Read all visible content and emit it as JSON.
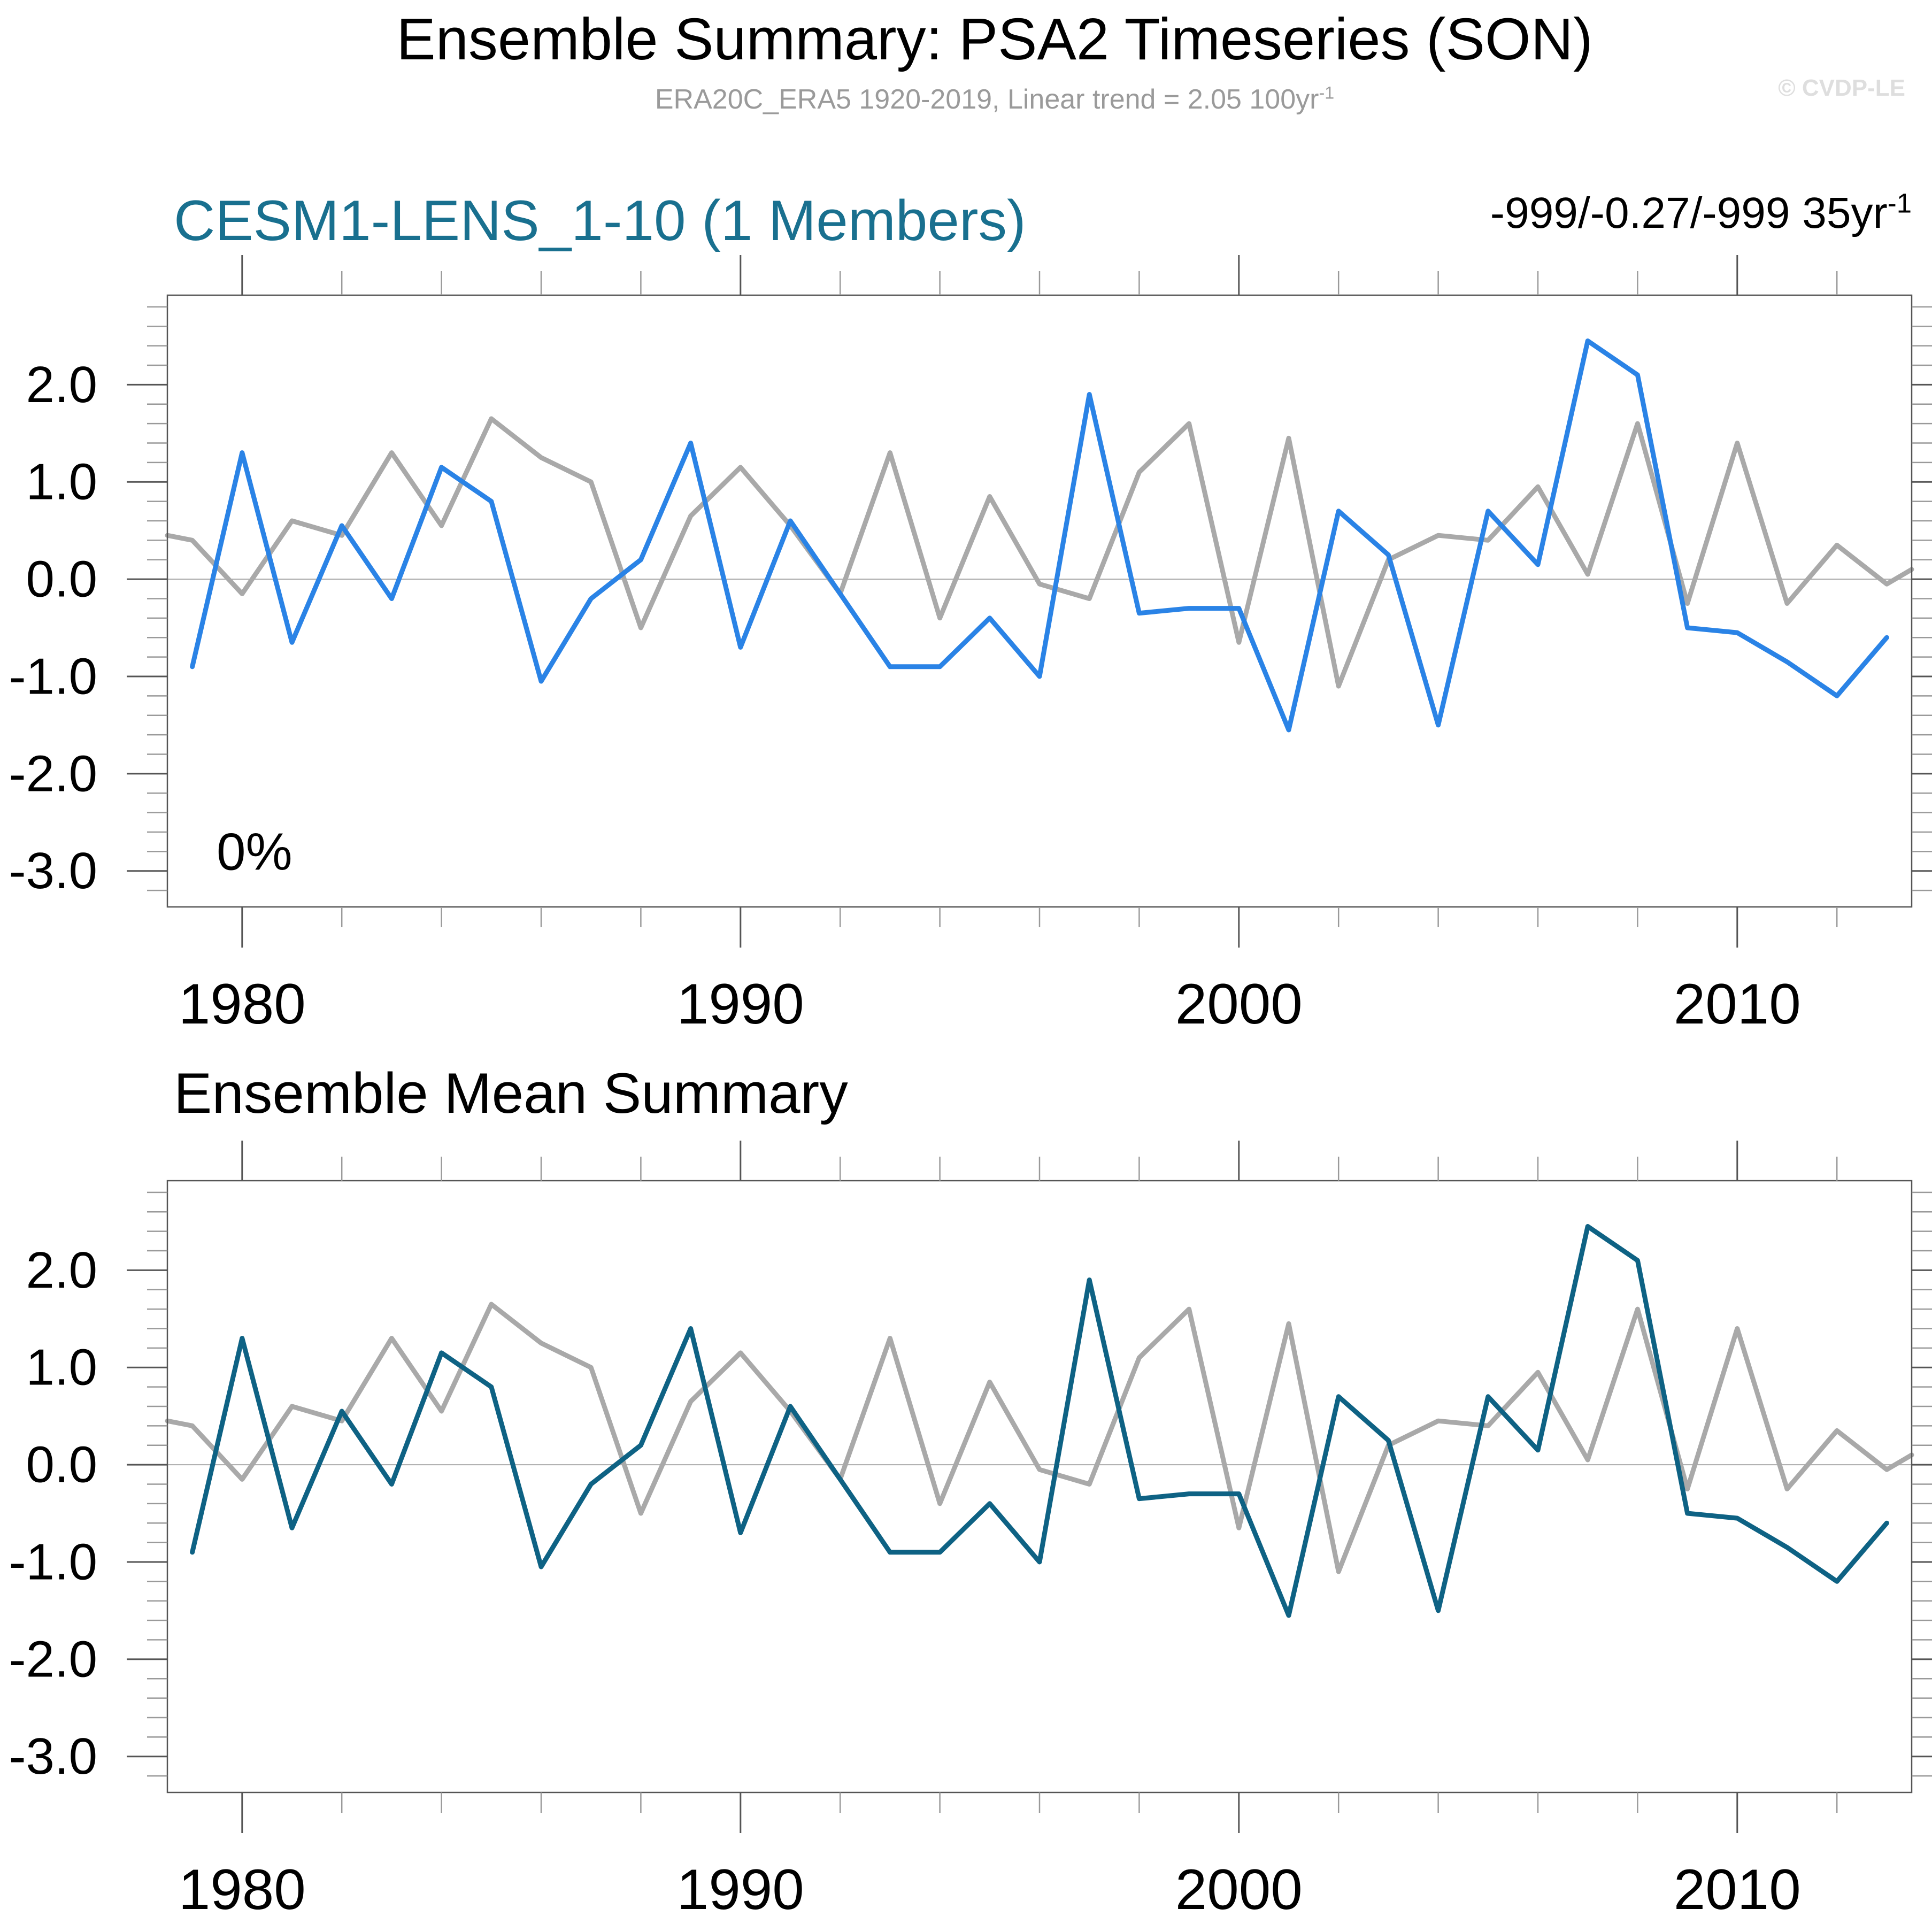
{
  "page": {
    "background": "#ffffff"
  },
  "header": {
    "title": "Ensemble Summary: PSA2 Timeseries (SON)",
    "subtitle": "ERA20C_ERA5 1920-2019, Linear trend = 2.05 100yr",
    "subtitle_superscript": "-1",
    "watermark": "© CVDP-LE"
  },
  "panels": [
    {
      "title": "CESM1-LENS_1-10 (1 Members)",
      "title_color": "#19708f",
      "annotation": "-999/-0.27/-999 35yr",
      "annotation_superscript": "-1",
      "inner_label": "0%"
    },
    {
      "title": "Ensemble Mean Summary",
      "title_color": "#000000"
    }
  ],
  "colors": {
    "obs_line": "#a9a9a9",
    "member_line": "#2a83e6",
    "ensemble_mean_line": "#0e6284",
    "frame": "#555555",
    "major_tick": "#555555",
    "minor_tick": "#9a9a9a",
    "zero_line": "#aaaaaa",
    "axis_label": "#000000"
  },
  "chart_data": [
    {
      "type": "line",
      "title": "CESM1-LENS_1-10 (1 Members)",
      "xlabel": "",
      "ylabel": "",
      "xlim": [
        1978.5,
        2013.5
      ],
      "ylim": [
        -3.37,
        2.92
      ],
      "x_major_ticks": [
        1980,
        1990,
        2000,
        2010
      ],
      "x_tick_labels": [
        "1980",
        "1990",
        "2000",
        "2010"
      ],
      "x_minor_tick_step": 2,
      "y_major_ticks": [
        2,
        1,
        0,
        -1,
        -2,
        -3
      ],
      "y_tick_labels": [
        "2.0",
        "1.0",
        "0.0",
        "-1.0",
        "-2.0",
        "-3.0"
      ],
      "y_minor_tick_step": 0.2,
      "grid": "zero-line-only",
      "legend": "none",
      "annotation_bottom_left": "0%",
      "series": [
        {
          "name": "ERA20C_ERA5",
          "color": "#a9a9a9",
          "x": [
            1978.5,
            1979,
            1980,
            1981,
            1982,
            1983,
            1984,
            1985,
            1986,
            1987,
            1988,
            1989,
            1990,
            1991,
            1992,
            1993,
            1994,
            1995,
            1996,
            1997,
            1998,
            1999,
            2000,
            2001,
            2002,
            2003,
            2004,
            2005,
            2006,
            2007,
            2008,
            2009,
            2010,
            2011,
            2012,
            2013,
            2013.5
          ],
          "values": [
            0.45,
            0.4,
            -0.15,
            0.6,
            0.45,
            1.3,
            0.55,
            1.65,
            1.25,
            1.0,
            -0.5,
            0.65,
            1.15,
            0.55,
            -0.15,
            1.3,
            -0.4,
            0.85,
            -0.05,
            -0.2,
            1.1,
            1.6,
            -0.65,
            1.45,
            -1.1,
            0.2,
            0.45,
            0.4,
            0.95,
            0.05,
            1.6,
            -0.25,
            1.4,
            -0.25,
            0.35,
            -0.05,
            0.1
          ]
        },
        {
          "name": "CESM1-LENS member 1",
          "color": "#2a83e6",
          "x": [
            1979,
            1980,
            1981,
            1982,
            1983,
            1984,
            1985,
            1986,
            1987,
            1988,
            1989,
            1990,
            1991,
            1992,
            1993,
            1994,
            1995,
            1996,
            1997,
            1998,
            1999,
            2000,
            2001,
            2002,
            2003,
            2004,
            2005,
            2006,
            2007,
            2008,
            2009,
            2010,
            2011,
            2012,
            2013
          ],
          "values": [
            -0.9,
            1.3,
            -0.65,
            0.55,
            -0.2,
            1.15,
            0.8,
            -1.05,
            -0.2,
            0.2,
            1.4,
            -0.7,
            0.6,
            -0.15,
            -0.9,
            -0.9,
            -0.4,
            -1.0,
            1.9,
            -0.35,
            -0.3,
            -0.3,
            -1.55,
            0.7,
            0.25,
            -1.5,
            0.7,
            0.15,
            2.45,
            2.1,
            -0.5,
            -0.55,
            -0.85,
            -1.2,
            -0.6
          ]
        }
      ]
    },
    {
      "type": "line",
      "title": "Ensemble Mean Summary",
      "xlabel": "",
      "ylabel": "",
      "xlim": [
        1978.5,
        2013.5
      ],
      "ylim": [
        -3.37,
        2.92
      ],
      "x_major_ticks": [
        1980,
        1990,
        2000,
        2010
      ],
      "x_tick_labels": [
        "1980",
        "1990",
        "2000",
        "2010"
      ],
      "x_minor_tick_step": 2,
      "y_major_ticks": [
        2,
        1,
        0,
        -1,
        -2,
        -3
      ],
      "y_tick_labels": [
        "2.0",
        "1.0",
        "0.0",
        "-1.0",
        "-2.0",
        "-3.0"
      ],
      "y_minor_tick_step": 0.2,
      "grid": "zero-line-only",
      "legend": "none",
      "series": [
        {
          "name": "ERA20C_ERA5",
          "color": "#a9a9a9",
          "x": [
            1978.5,
            1979,
            1980,
            1981,
            1982,
            1983,
            1984,
            1985,
            1986,
            1987,
            1988,
            1989,
            1990,
            1991,
            1992,
            1993,
            1994,
            1995,
            1996,
            1997,
            1998,
            1999,
            2000,
            2001,
            2002,
            2003,
            2004,
            2005,
            2006,
            2007,
            2008,
            2009,
            2010,
            2011,
            2012,
            2013,
            2013.5
          ],
          "values": [
            0.45,
            0.4,
            -0.15,
            0.6,
            0.45,
            1.3,
            0.55,
            1.65,
            1.25,
            1.0,
            -0.5,
            0.65,
            1.15,
            0.55,
            -0.15,
            1.3,
            -0.4,
            0.85,
            -0.05,
            -0.2,
            1.1,
            1.6,
            -0.65,
            1.45,
            -1.1,
            0.2,
            0.45,
            0.4,
            0.95,
            0.05,
            1.6,
            -0.25,
            1.4,
            -0.25,
            0.35,
            -0.05,
            0.1
          ]
        },
        {
          "name": "Ensemble mean (1 member)",
          "color": "#0e6284",
          "x": [
            1979,
            1980,
            1981,
            1982,
            1983,
            1984,
            1985,
            1986,
            1987,
            1988,
            1989,
            1990,
            1991,
            1992,
            1993,
            1994,
            1995,
            1996,
            1997,
            1998,
            1999,
            2000,
            2001,
            2002,
            2003,
            2004,
            2005,
            2006,
            2007,
            2008,
            2009,
            2010,
            2011,
            2012,
            2013
          ],
          "values": [
            -0.9,
            1.3,
            -0.65,
            0.55,
            -0.2,
            1.15,
            0.8,
            -1.05,
            -0.2,
            0.2,
            1.4,
            -0.7,
            0.6,
            -0.15,
            -0.9,
            -0.9,
            -0.4,
            -1.0,
            1.9,
            -0.35,
            -0.3,
            -0.3,
            -1.55,
            0.7,
            0.25,
            -1.5,
            0.7,
            0.15,
            2.45,
            2.1,
            -0.5,
            -0.55,
            -0.85,
            -1.2,
            -0.6
          ]
        }
      ]
    }
  ]
}
